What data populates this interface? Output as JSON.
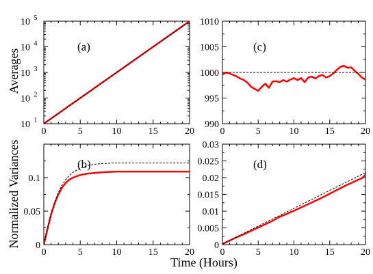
{
  "x_axis_label": "Time (Hours)",
  "chart_data": [
    {
      "type": "line",
      "panel_label": "(a)",
      "ylabel": "Averages",
      "yscale": "log",
      "xlim": [
        0,
        20
      ],
      "ylim": [
        10,
        100000
      ],
      "x_ticks": [
        "0",
        "5",
        "10",
        "15",
        "20"
      ],
      "y_ticks": [
        {
          "base": "10",
          "exp": "1"
        },
        {
          "base": "10",
          "exp": "2"
        },
        {
          "base": "10",
          "exp": "3"
        },
        {
          "base": "10",
          "exp": "4"
        },
        {
          "base": "10",
          "exp": "5"
        }
      ],
      "series": [
        {
          "role": "simulation",
          "style": "solid",
          "color": "#ff0000",
          "x": [
            0,
            5,
            10,
            15,
            20
          ],
          "y": [
            10,
            100,
            1000,
            10000,
            100000
          ]
        },
        {
          "role": "theory",
          "style": "dashed",
          "color": "#000000",
          "x": [
            0,
            5,
            10,
            15,
            20
          ],
          "y": [
            10,
            100,
            1000,
            10000,
            100000
          ]
        }
      ]
    },
    {
      "type": "line",
      "panel_label": "(b)",
      "ylabel": "Normalized Variances",
      "xlim": [
        0,
        20
      ],
      "ylim": [
        0,
        0.15
      ],
      "x_ticks": [
        "0",
        "5",
        "10",
        "15",
        "20"
      ],
      "y_ticks": [
        "0",
        "0.05",
        "0.1"
      ],
      "series": [
        {
          "role": "simulation",
          "style": "solid",
          "color": "#ff0000",
          "x": [
            0,
            0.5,
            1,
            1.5,
            2,
            2.5,
            3,
            3.5,
            4,
            5,
            6,
            7,
            8,
            10,
            12,
            15,
            18,
            20
          ],
          "y": [
            0,
            0.023,
            0.045,
            0.062,
            0.075,
            0.085,
            0.092,
            0.097,
            0.1,
            0.104,
            0.106,
            0.107,
            0.108,
            0.109,
            0.109,
            0.109,
            0.109,
            0.109
          ]
        },
        {
          "role": "theory",
          "style": "dashed",
          "color": "#000000",
          "x": [
            0,
            0.5,
            1,
            1.5,
            2,
            2.5,
            3,
            3.5,
            4,
            5,
            6,
            7,
            8,
            10,
            12,
            15,
            18,
            20
          ],
          "y": [
            0,
            0.025,
            0.047,
            0.064,
            0.078,
            0.089,
            0.097,
            0.103,
            0.108,
            0.114,
            0.118,
            0.12,
            0.121,
            0.122,
            0.122,
            0.122,
            0.122,
            0.122
          ]
        }
      ]
    },
    {
      "type": "line",
      "panel_label": "(c)",
      "xlim": [
        0,
        20
      ],
      "ylim": [
        990,
        1010
      ],
      "x_ticks": [
        "0",
        "5",
        "10",
        "15",
        "20"
      ],
      "y_ticks": [
        "990",
        "995",
        "1000",
        "1005",
        "1010"
      ],
      "series": [
        {
          "role": "simulation",
          "style": "solid",
          "color": "#ff0000",
          "x": [
            0,
            0.5,
            1,
            1.5,
            2,
            2.5,
            3,
            3.5,
            4,
            4.5,
            5,
            5.5,
            6,
            6.5,
            7,
            7.5,
            8,
            8.5,
            9,
            9.5,
            10,
            10.5,
            11,
            11.5,
            12,
            12.5,
            13,
            13.5,
            14,
            14.5,
            15,
            15.5,
            16,
            16.5,
            17,
            17.5,
            18,
            18.5,
            19,
            19.5,
            20
          ],
          "y": [
            999.6,
            1000.0,
            999.8,
            999.5,
            999.2,
            998.8,
            998.5,
            998.0,
            997.2,
            996.8,
            996.4,
            997.2,
            997.8,
            997.0,
            998.2,
            998.3,
            998.1,
            998.5,
            998.2,
            998.6,
            998.9,
            998.5,
            998.9,
            998.1,
            999.0,
            999.2,
            998.8,
            999.3,
            999.5,
            999.0,
            999.3,
            999.8,
            1000.5,
            1001.1,
            1001.3,
            1000.9,
            1001.0,
            1000.3,
            999.7,
            999.0,
            998.6
          ]
        },
        {
          "role": "theory",
          "style": "dashed",
          "color": "#000000",
          "x": [
            0,
            20
          ],
          "y": [
            1000,
            1000
          ]
        }
      ]
    },
    {
      "type": "line",
      "panel_label": "(d)",
      "xlim": [
        0,
        20
      ],
      "ylim": [
        0,
        0.03
      ],
      "x_ticks": [
        "0",
        "5",
        "10",
        "15",
        "20"
      ],
      "y_ticks": [
        "0",
        "0.005",
        "0.01",
        "0.015",
        "0.02",
        "0.025",
        "0.03"
      ],
      "series": [
        {
          "role": "simulation",
          "style": "solid",
          "color": "#ff0000",
          "x": [
            0,
            1,
            2,
            3,
            4,
            5,
            6,
            7,
            8,
            9,
            10,
            11,
            12,
            13,
            14,
            15,
            16,
            17,
            18,
            19,
            19.5,
            20
          ],
          "y": [
            0.0002,
            0.0012,
            0.0022,
            0.0031,
            0.0041,
            0.0051,
            0.0061,
            0.0071,
            0.0083,
            0.0092,
            0.0101,
            0.0111,
            0.0121,
            0.0131,
            0.0141,
            0.0152,
            0.0163,
            0.0174,
            0.0184,
            0.0194,
            0.0198,
            0.0209
          ]
        },
        {
          "role": "theory",
          "style": "dashed",
          "color": "#000000",
          "x": [
            0,
            20
          ],
          "y": [
            0.0002,
            0.0215
          ]
        }
      ]
    }
  ]
}
